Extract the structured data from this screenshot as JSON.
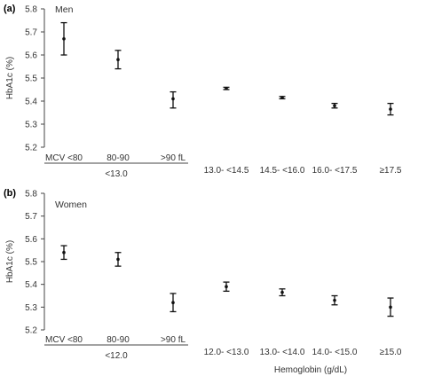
{
  "chart_data": [
    {
      "type": "errorbar",
      "panel_label": "(a)",
      "title": "Men",
      "ylabel": "HbA1c (%)",
      "ylim": [
        5.2,
        5.8
      ],
      "yticks": [
        "5.2",
        "5.3",
        "5.4",
        "5.5",
        "5.6",
        "5.7",
        "5.8"
      ],
      "categories": [
        "MCV <80",
        "80-90",
        ">90 fL",
        "13.0- <14.5",
        "14.5- <16.0",
        "16.0- <17.5",
        "≥17.5"
      ],
      "group_label": "<13.0",
      "points": [
        {
          "mean": 5.67,
          "low": 5.6,
          "high": 5.74
        },
        {
          "mean": 5.58,
          "low": 5.54,
          "high": 5.62
        },
        {
          "mean": 5.41,
          "low": 5.37,
          "high": 5.44
        },
        {
          "mean": 5.455,
          "low": 5.45,
          "high": 5.46
        },
        {
          "mean": 5.415,
          "low": 5.41,
          "high": 5.42
        },
        {
          "mean": 5.38,
          "low": 5.37,
          "high": 5.39
        },
        {
          "mean": 5.365,
          "low": 5.34,
          "high": 5.39
        }
      ],
      "grid": false
    },
    {
      "type": "errorbar",
      "panel_label": "(b)",
      "title": "Women",
      "ylabel": "HbA1c (%)",
      "xlabel": "Hemoglobin (g/dL)",
      "ylim": [
        5.2,
        5.8
      ],
      "yticks": [
        "5.2",
        "5.3",
        "5.4",
        "5.5",
        "5.6",
        "5.7",
        "5.8"
      ],
      "categories": [
        "MCV <80",
        "80-90",
        ">90 fL",
        "12.0- <13.0",
        "13.0- <14.0",
        "14.0- <15.0",
        "≥15.0"
      ],
      "group_label": "<12.0",
      "points": [
        {
          "mean": 5.54,
          "low": 5.51,
          "high": 5.57
        },
        {
          "mean": 5.51,
          "low": 5.48,
          "high": 5.54
        },
        {
          "mean": 5.32,
          "low": 5.28,
          "high": 5.36
        },
        {
          "mean": 5.39,
          "low": 5.37,
          "high": 5.41
        },
        {
          "mean": 5.365,
          "low": 5.35,
          "high": 5.38
        },
        {
          "mean": 5.33,
          "low": 5.31,
          "high": 5.35
        },
        {
          "mean": 5.3,
          "low": 5.26,
          "high": 5.34
        }
      ],
      "grid": false
    }
  ]
}
